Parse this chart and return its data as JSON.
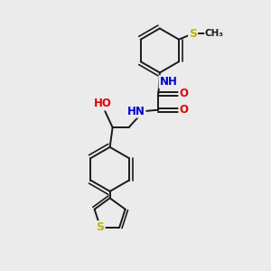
{
  "bg_color": "#ebebeb",
  "bond_color": "#1a1a1a",
  "bond_width": 1.4,
  "atom_colors": {
    "O": "#e00000",
    "N": "#0000cc",
    "S": "#b8b800",
    "H": "#1a1a1a",
    "C": "#1a1a1a"
  },
  "font_size_atom": 8.5,
  "fig_width": 3.0,
  "fig_height": 3.0,
  "dpi": 100,
  "xlim": [
    0,
    10
  ],
  "ylim": [
    0,
    10
  ]
}
